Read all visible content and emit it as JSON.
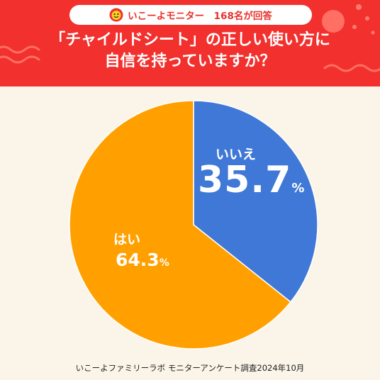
{
  "header": {
    "badge_text": "いこーよモニター　168名が回答",
    "title_line1": "「チャイルドシート」の正しい使い方に",
    "title_line2": "自信を持っていますか？"
  },
  "colors": {
    "header_bg": "#f2312e",
    "page_bg": "#fbf5e9",
    "yes": "#ffa000",
    "no": "#3f78d6"
  },
  "icons": {
    "badge_logo": "ikoyo-face-icon"
  },
  "chart_data": {
    "type": "pie",
    "title": "「チャイルドシート」の正しい使い方に自信を持っていますか？",
    "slices": [
      {
        "label": "いいえ",
        "value": 35.7,
        "display": "35.7",
        "color": "#3f78d6"
      },
      {
        "label": "はい",
        "value": 64.3,
        "display": "64.3",
        "color": "#ffa000"
      }
    ],
    "unit": "%",
    "start": "12 o'clock, clockwise"
  },
  "footer": "いこーよファミリーラボ モニターアンケート調査2024年10月"
}
